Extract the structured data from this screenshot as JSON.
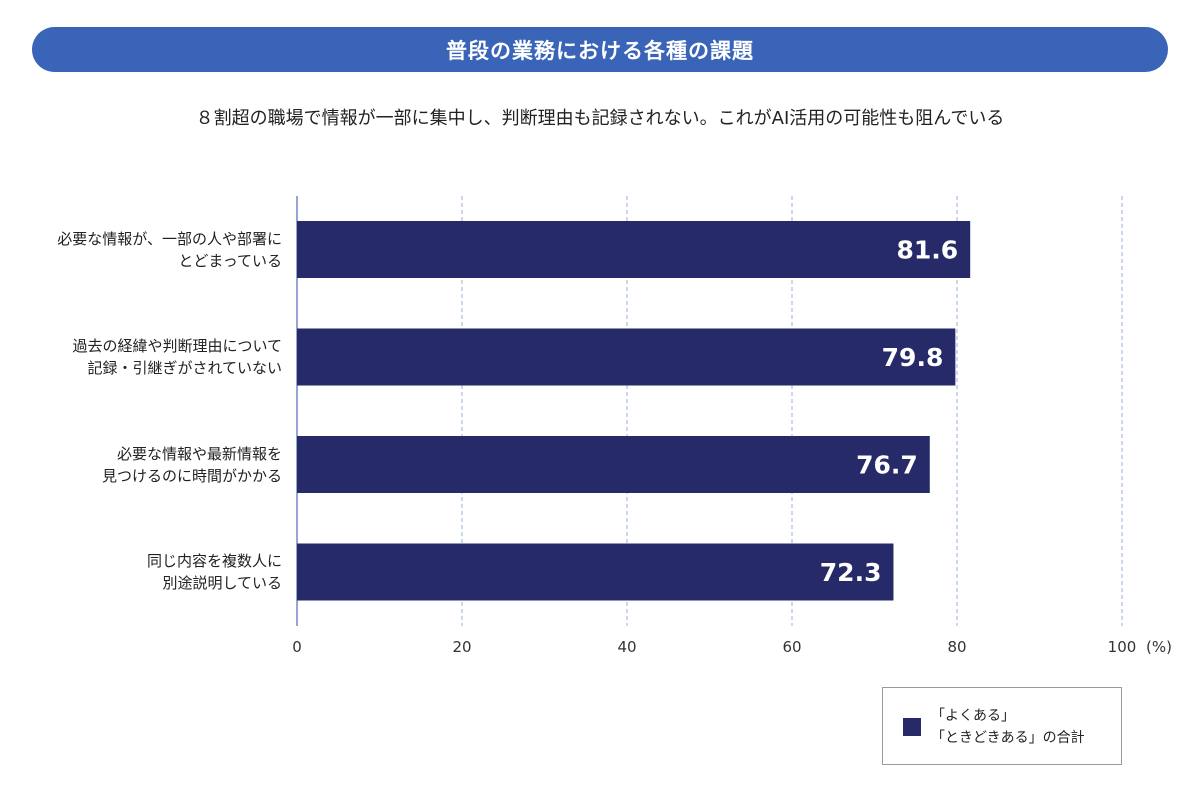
{
  "header": {
    "title": "普段の業務における各種の課題",
    "subtitle": "８割超の職場で情報が一部に集中し、判断理由も記録されない。これがAI活用の可能性も阻んでいる"
  },
  "chart_data": {
    "type": "bar",
    "orientation": "horizontal",
    "categories": [
      [
        "必要な情報が、一部の人や部署に",
        "とどまっている"
      ],
      [
        "過去の経緯や判断理由について",
        "記録・引継ぎがされていない"
      ],
      [
        "必要な情報や最新情報を",
        "見つけるのに時間がかかる"
      ],
      [
        "同じ内容を複数人に",
        "別途説明している"
      ]
    ],
    "series": [
      {
        "name": "「よくある」「ときどきある」の合計",
        "values": [
          81.6,
          79.8,
          76.7,
          72.3
        ]
      }
    ],
    "value_labels": [
      "81.6",
      "79.8",
      "76.7",
      "72.3"
    ],
    "xlim": [
      0,
      100
    ],
    "ticks": [
      0,
      20,
      40,
      60,
      80,
      100
    ],
    "unit_label": "(%)",
    "grid": true,
    "grid_style": "dashed vertical",
    "colors": {
      "bar": "#262a68",
      "grid": "#9cb0d8",
      "axis": "#4a6fb5",
      "title_bar": "#3a64b8"
    }
  },
  "legend": {
    "line1": "「よくある」",
    "line2": "「ときどきある」の合計",
    "position": "bottom-right"
  }
}
